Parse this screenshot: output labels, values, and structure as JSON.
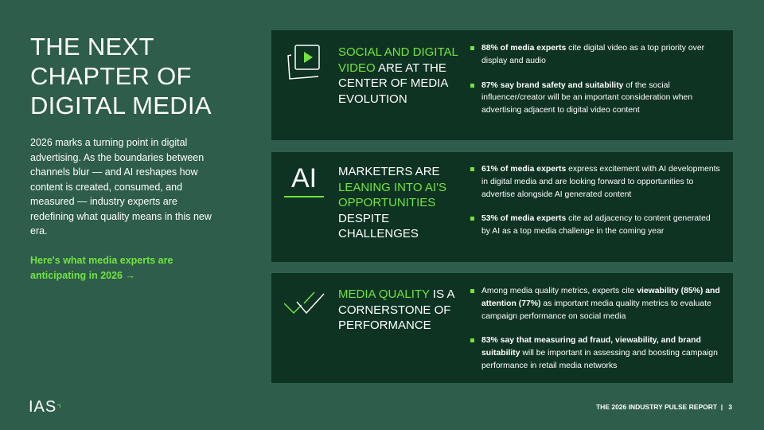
{
  "title": [
    "THE NEXT",
    "CHAPTER OF",
    "DIGITAL MEDIA"
  ],
  "intro": "2026 marks a turning point in digital advertising. As the boundaries between channels blur — and AI reshapes how content is created, consumed, and measured — industry experts are redefining what quality means in this new era.",
  "cta": "Here's what media experts are anticipating in 2026 →",
  "cards": [
    {
      "icon": "video-play-icon",
      "head_green": "SOCIAL AND DIGITAL VIDEO",
      "head_white": " ARE AT THE CENTER OF MEDIA EVOLUTION",
      "bullets": [
        {
          "bold": "88% of media experts",
          "text": " cite digital video as a top priority over display and audio"
        },
        {
          "bold": "87% say brand safety and suitability",
          "text": " of the social influencer/creator will be an important consideration when advertising adjacent to digital video content"
        }
      ]
    },
    {
      "icon": "ai-icon",
      "icon_text": "AI",
      "head_white1": "MARKETERS ARE ",
      "head_green": "LEANING INTO AI'S OPPORTUNITIES",
      "head_white": " DESPITE CHALLENGES",
      "bullets": [
        {
          "bold": "61% of media experts",
          "text": " express excitement with AI developments in digital media and are looking forward to opportunities to advertise alongside AI generated content"
        },
        {
          "bold": "53% of media experts",
          "text": " cite ad adjacency to content generated by AI as a top media challenge in the coming year"
        }
      ]
    },
    {
      "icon": "checkmarks-icon",
      "head_green": "MEDIA QUALITY",
      "head_white": " IS A CORNERSTONE OF PERFORMANCE",
      "bullets": [
        {
          "pre": "Among media quality metrics, experts cite ",
          "bold": "viewability (85%) and attention (77%)",
          "text": " as important media quality metrics to evaluate campaign performance on social media"
        },
        {
          "bold": "83% say that measuring ad fraud, viewability, and brand suitability",
          "text": " will be important in assessing and boosting campaign performance in retail media networks"
        }
      ]
    }
  ],
  "logo": "IAS",
  "footer": "THE 2026 INDUSTRY PULSE REPORT  |   3"
}
